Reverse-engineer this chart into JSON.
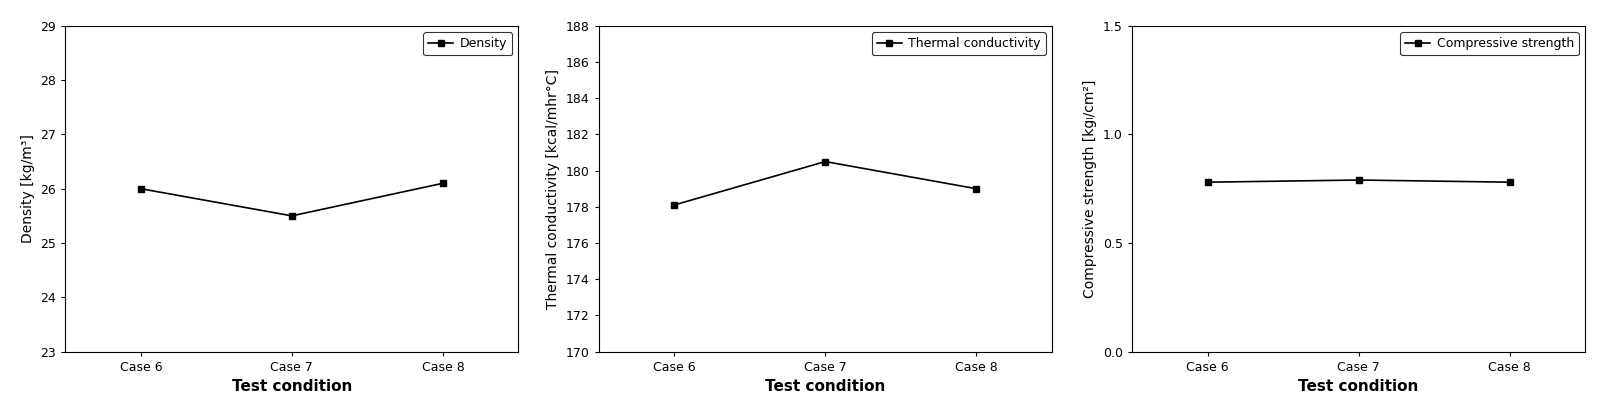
{
  "categories": [
    "Case 6",
    "Case 7",
    "Case 8"
  ],
  "density": {
    "values": [
      26.0,
      25.5,
      26.1
    ],
    "ylabel": "Density [kg/m³]",
    "legend": "Density",
    "ylim": [
      23,
      29
    ],
    "yticks": [
      23,
      24,
      25,
      26,
      27,
      28,
      29
    ]
  },
  "thermal": {
    "values": [
      178.1,
      180.5,
      179.0
    ],
    "ylabel": "Thermal conductivity [kcal/mhr°C]",
    "legend": "Thermal conductivity",
    "ylim": [
      170,
      188
    ],
    "yticks": [
      170,
      172,
      174,
      176,
      178,
      180,
      182,
      184,
      186,
      188
    ]
  },
  "compressive": {
    "values": [
      0.78,
      0.79,
      0.78
    ],
    "ylabel": "Compressive strength [kgₗ/cm²]",
    "legend": "Compressive strength",
    "ylim": [
      0.0,
      1.5
    ],
    "yticks": [
      0.0,
      0.5,
      1.0,
      1.5
    ]
  },
  "xlabel": "Test condition",
  "line_color": "black",
  "marker": "s",
  "markersize": 5,
  "linewidth": 1.2,
  "background_color": "white",
  "tick_fontsize": 9,
  "label_fontsize": 11,
  "legend_fontsize": 9
}
